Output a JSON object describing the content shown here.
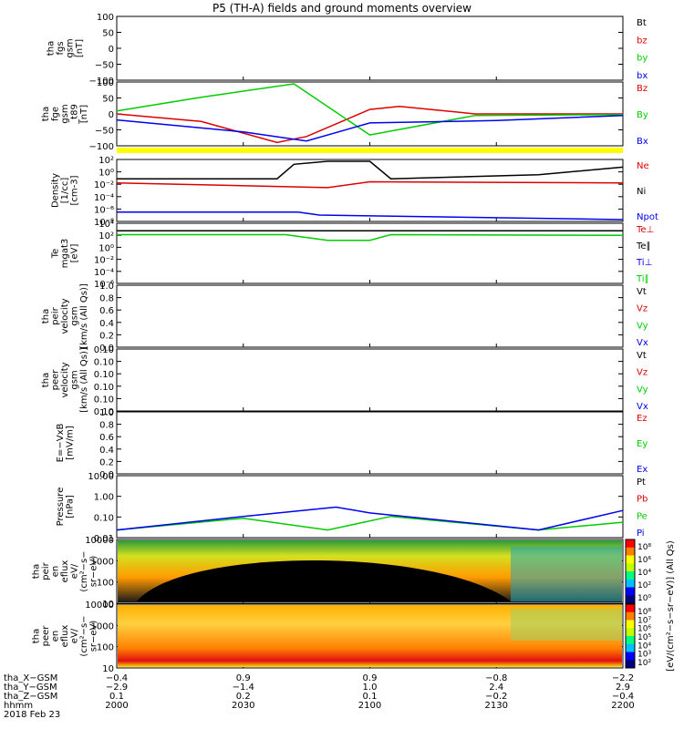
{
  "title": "P5 (TH-A) fields and ground moments overview",
  "colors": {
    "black": "#000000",
    "red": "#dd0000",
    "green": "#00cc00",
    "blue": "#0000ee",
    "yellow": "#ffff00"
  },
  "panels": [
    {
      "id": "fgs",
      "ylabel": [
        "tha",
        "fgs",
        "gsm",
        "[nT]"
      ],
      "yticks": [
        "100",
        "50",
        "0",
        "−50",
        "−100"
      ],
      "legend": [
        {
          "text": "Bt",
          "color": "black"
        },
        {
          "text": "bz",
          "color": "red"
        },
        {
          "text": "by",
          "color": "green"
        },
        {
          "text": "bx",
          "color": "blue"
        }
      ]
    },
    {
      "id": "fge",
      "ylabel": [
        "tha",
        "fge",
        "gsm",
        "_t89",
        "[nT]"
      ],
      "yticks": [
        "100",
        "50",
        "0",
        "−50",
        "−100"
      ],
      "legend": [
        {
          "text": "Bz",
          "color": "red"
        },
        {
          "text": "By",
          "color": "green"
        },
        {
          "text": "Bx",
          "color": "blue"
        }
      ]
    },
    {
      "id": "density",
      "ylabel": [
        "Density",
        "[1/cc]",
        "[cm-3]"
      ],
      "yticks": [
        "10²",
        "10⁰",
        "10⁻²",
        "10⁻⁴",
        "10⁻⁶",
        "10⁻⁸"
      ],
      "legend": [
        {
          "text": "Ne",
          "color": "red"
        },
        {
          "text": "Ni",
          "color": "black"
        },
        {
          "text": "Npot",
          "color": "blue"
        }
      ]
    },
    {
      "id": "temp",
      "ylabel": [
        "Te",
        "mgat3",
        "[eV]"
      ],
      "yticks": [
        "10⁴",
        "10²",
        "10⁰",
        "10⁻²",
        "10⁻⁴",
        "10⁻⁶"
      ],
      "legend": [
        {
          "text": "Te⊥",
          "color": "red"
        },
        {
          "text": "Te∥",
          "color": "black"
        },
        {
          "text": "Ti⊥",
          "color": "blue"
        },
        {
          "text": "Ti∥",
          "color": "green"
        }
      ]
    },
    {
      "id": "peir_vel",
      "ylabel": [
        "tha",
        "peir",
        "velocity",
        "gsm",
        "[km/s (All Qs)]"
      ],
      "yticks": [
        "1.0",
        "0.8",
        "0.6",
        "0.4",
        "0.2",
        "0.0"
      ],
      "legend": [
        {
          "text": "Vt",
          "color": "black"
        },
        {
          "text": "Vz",
          "color": "red"
        },
        {
          "text": "Vy",
          "color": "green"
        },
        {
          "text": "Vx",
          "color": "blue"
        }
      ]
    },
    {
      "id": "peer_vel",
      "ylabel": [
        "tha",
        "peer",
        "velocity",
        "gsm",
        "[km/s (All Qs)]"
      ],
      "yticks": [
        "0.10",
        "0.10",
        "0.10",
        "0.10",
        "0.10",
        "0.10"
      ],
      "legend": [
        {
          "text": "Vt",
          "color": "black"
        },
        {
          "text": "Vz",
          "color": "red"
        },
        {
          "text": "Vy",
          "color": "green"
        },
        {
          "text": "Vx",
          "color": "blue"
        }
      ]
    },
    {
      "id": "efield",
      "ylabel": [
        "E=−VxB",
        "[mV/m]"
      ],
      "yticks": [
        "1.0",
        "0.8",
        "0.6",
        "0.4",
        "0.2",
        "0.0"
      ],
      "legend": [
        {
          "text": "Ez",
          "color": "red"
        },
        {
          "text": "Ey",
          "color": "green"
        },
        {
          "text": "Ex",
          "color": "blue"
        }
      ]
    },
    {
      "id": "pressure",
      "ylabel": [
        "Pressure",
        "[nPa]"
      ],
      "yticks": [
        "10.00",
        "1.00",
        "0.10",
        "0.01"
      ],
      "legend": [
        {
          "text": "Pt",
          "color": "black"
        },
        {
          "text": "Pb",
          "color": "red"
        },
        {
          "text": "Pe",
          "color": "green"
        },
        {
          "text": "Pi",
          "color": "blue"
        }
      ]
    },
    {
      "id": "peir_en",
      "ylabel": [
        "tha",
        "peir",
        "en",
        "eflux",
        "eV/",
        "(cm²−s−",
        "sr−eV)"
      ],
      "yticks": [
        "10000",
        "1000",
        "100",
        "10"
      ],
      "colorbar": [
        "10⁸",
        "10⁶",
        "10⁴",
        "10²",
        "10⁰"
      ]
    },
    {
      "id": "peer_en",
      "ylabel": [
        "tha",
        "peer",
        "en",
        "eflux",
        "eV/",
        "(cm²−s−",
        "sr−eV)"
      ],
      "yticks": [
        "10000",
        "1000",
        "100",
        "10"
      ],
      "colorbar": [
        "10⁸",
        "10⁷",
        "10⁶",
        "10⁵",
        "10⁴",
        "10³",
        "10²"
      ]
    }
  ],
  "colorbar_label": "[eV/(cm²−s−sr−eV)] (All Qs)",
  "orbit_rows": [
    {
      "label": "tha_X−GSM",
      "values": [
        "−0.4",
        "0.9",
        "0.9",
        "−0.8",
        "−2.2"
      ]
    },
    {
      "label": "tha_Y−GSM",
      "values": [
        "−2.9",
        "−1.4",
        "1.0",
        "2.4",
        "2.9"
      ]
    },
    {
      "label": "tha_Z−GSM",
      "values": [
        "0.1",
        "0.2",
        "0.1",
        "−0.2",
        "−0.4"
      ]
    },
    {
      "label": "hhmm",
      "values": [
        "2000",
        "2030",
        "2100",
        "2130",
        "2200"
      ]
    }
  ],
  "date_label": "2018 Feb 23",
  "chart_data": {
    "type": "line",
    "title": "P5 (TH-A) fields and ground moments overview",
    "x_ticks": [
      "2000",
      "2030",
      "2100",
      "2130",
      "2200"
    ],
    "xlim": [
      "2000",
      "2200"
    ],
    "series": [
      {
        "panel": "fge",
        "name": "Bz",
        "color": "red",
        "x": [
          "2000",
          "2020",
          "2038",
          "2045",
          "2100",
          "2107",
          "2125",
          "2200"
        ],
        "y": [
          0,
          -25,
          -95,
          -75,
          15,
          25,
          0,
          0
        ]
      },
      {
        "panel": "fge",
        "name": "By",
        "color": "green",
        "x": [
          "2000",
          "2020",
          "2042",
          "2100",
          "2125",
          "2200"
        ],
        "y": [
          10,
          55,
          105,
          -70,
          -5,
          -2
        ]
      },
      {
        "panel": "fge",
        "name": "Bx",
        "color": "blue",
        "x": [
          "2000",
          "2030",
          "2045",
          "2100",
          "2130",
          "2200"
        ],
        "y": [
          -20,
          -60,
          -90,
          -30,
          -22,
          -5
        ]
      },
      {
        "panel": "density",
        "name": "Ni",
        "color": "black",
        "x": [
          "2000",
          "2038",
          "2042",
          "2050",
          "2100",
          "2105",
          "2140",
          "2200"
        ],
        "y": [
          0.1,
          0.1,
          30,
          100,
          100,
          0.1,
          0.5,
          10
        ]
      },
      {
        "panel": "density",
        "name": "Ne",
        "color": "red",
        "x": [
          "2000",
          "2050",
          "2100",
          "2200"
        ],
        "y": [
          0.02,
          0.003,
          0.03,
          0.02
        ]
      },
      {
        "panel": "density",
        "name": "Npot",
        "color": "blue",
        "x": [
          "2000",
          "2043",
          "2048",
          "2200"
        ],
        "y": [
          2e-07,
          2e-07,
          6e-08,
          1e-08
        ]
      },
      {
        "panel": "temp",
        "name": "Te∥",
        "color": "black",
        "x": [
          "2000",
          "2200"
        ],
        "y": [
          1000,
          1000
        ]
      },
      {
        "panel": "temp",
        "name": "Ti∥",
        "color": "green",
        "x": [
          "2000",
          "2040",
          "2050",
          "2100",
          "2105",
          "2200"
        ],
        "y": [
          200,
          200,
          20,
          20,
          200,
          150
        ]
      },
      {
        "panel": "pressure",
        "name": "Pe",
        "color": "green",
        "x": [
          "2000",
          "2030",
          "2050",
          "2105",
          "2140",
          "2200"
        ],
        "y": [
          0.02,
          0.08,
          0.02,
          0.1,
          0.02,
          0.05
        ]
      },
      {
        "panel": "pressure",
        "name": "Pi",
        "color": "blue",
        "x": [
          "2000",
          "2030",
          "2052",
          "2100",
          "2140",
          "2200"
        ],
        "y": [
          0.02,
          0.1,
          0.3,
          0.15,
          0.02,
          0.2
        ]
      }
    ]
  }
}
